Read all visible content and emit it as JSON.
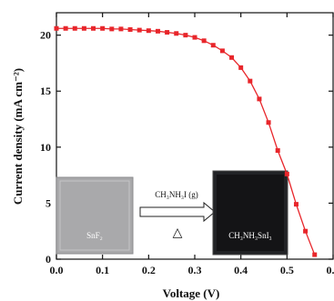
{
  "chart_data": {
    "type": "line",
    "xlabel": "Voltage (V)",
    "ylabel": "Current density (mA cm⁻²)",
    "xlim": [
      0.0,
      0.6
    ],
    "ylim": [
      0,
      22
    ],
    "xticks": [
      "0.0",
      "0.1",
      "0.2",
      "0.3",
      "0.4",
      "0.5",
      "0.6"
    ],
    "yticks": [
      "0",
      "5",
      "10",
      "15",
      "20"
    ],
    "grid": false,
    "legend": "none",
    "series": [
      {
        "color": "#e8262b",
        "marker": "square",
        "x": [
          0.0,
          0.02,
          0.04,
          0.06,
          0.08,
          0.1,
          0.12,
          0.14,
          0.16,
          0.18,
          0.2,
          0.22,
          0.24,
          0.26,
          0.28,
          0.3,
          0.32,
          0.34,
          0.36,
          0.38,
          0.4,
          0.42,
          0.44,
          0.46,
          0.48,
          0.5,
          0.52,
          0.54,
          0.56
        ],
        "y": [
          20.6,
          20.6,
          20.6,
          20.6,
          20.6,
          20.6,
          20.55,
          20.55,
          20.5,
          20.45,
          20.4,
          20.35,
          20.25,
          20.15,
          20.0,
          19.8,
          19.5,
          19.1,
          18.6,
          18.0,
          17.1,
          15.9,
          14.3,
          12.2,
          9.7,
          7.6,
          4.9,
          2.5,
          0.4
        ]
      }
    ],
    "inset": {
      "left_label": "SnF₂",
      "arrow_label": "CH₃NH₃I (g)",
      "arrow_symbol": "△",
      "right_label": "CH₃NH₃SnI₃"
    }
  }
}
